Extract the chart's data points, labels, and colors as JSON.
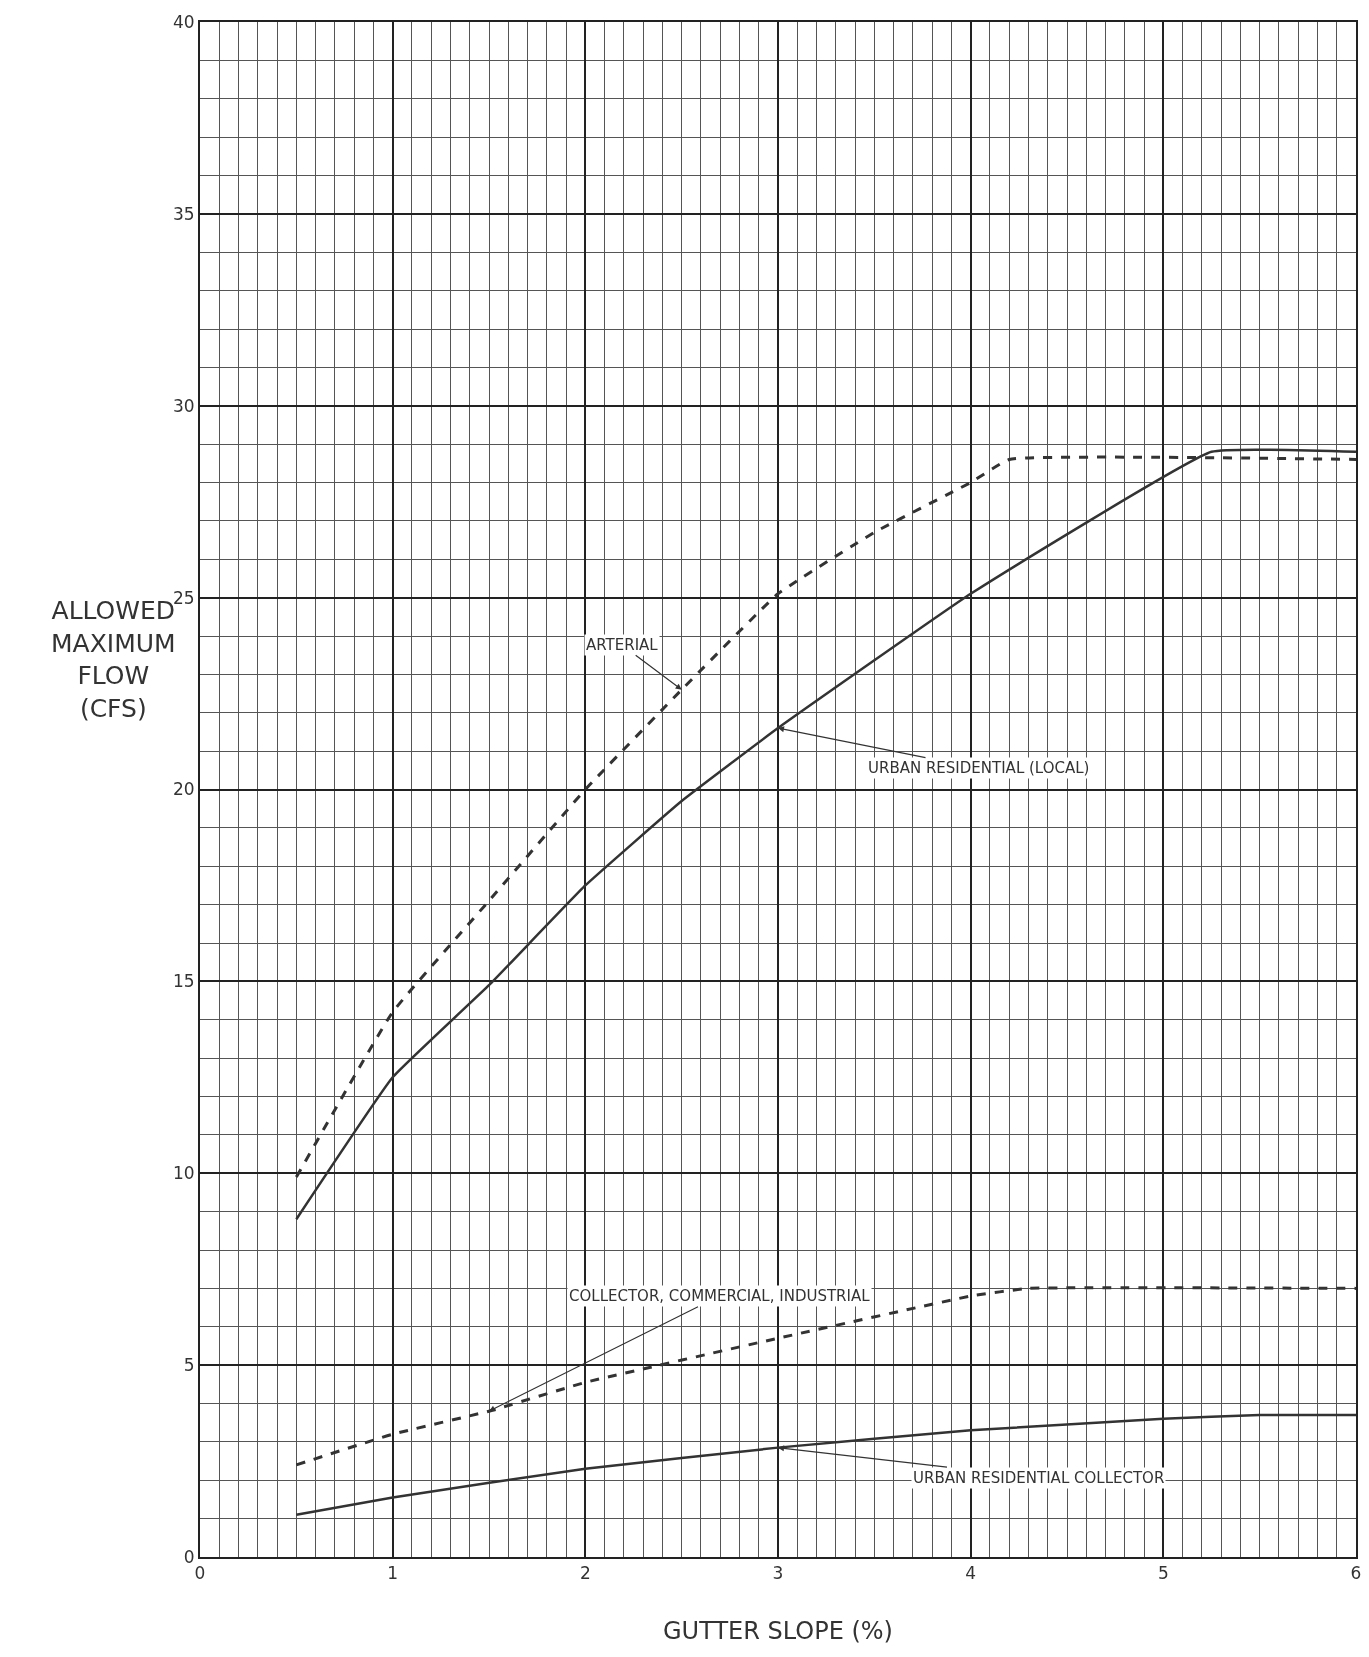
{
  "chart_data": {
    "type": "line",
    "xlabel": "GUTTER SLOPE (%)",
    "ylabel": "ALLOWED\nMAXIMUM\nFLOW\n(CFS)",
    "xlim": [
      0,
      6
    ],
    "ylim": [
      0,
      40
    ],
    "xticks": [
      0,
      1,
      2,
      3,
      4,
      5,
      6
    ],
    "yticks": [
      0,
      5,
      10,
      15,
      20,
      25,
      30,
      35,
      40
    ],
    "grid": true,
    "legend": false,
    "marker": "none",
    "series": [
      {
        "name": "ARTERIAL",
        "color": "#333333",
        "line_style": "dashed",
        "x": [
          0.5,
          1,
          1.5,
          2,
          2.5,
          3,
          3.5,
          4,
          4.2,
          6
        ],
        "values": [
          9.9,
          14.2,
          17.1,
          20.0,
          22.6,
          25.1,
          26.7,
          28.0,
          28.6,
          28.6
        ]
      },
      {
        "name": "URBAN RESIDENTIAL (LOCAL)",
        "color": "#333333",
        "line_style": "solid",
        "x": [
          0.5,
          1,
          1.5,
          2,
          2.5,
          3,
          4,
          5.25,
          6
        ],
        "values": [
          8.8,
          12.5,
          14.9,
          17.5,
          19.7,
          21.6,
          25.1,
          28.8,
          28.8
        ]
      },
      {
        "name": "COLLECTOR, COMMERCIAL, INDUSTRIAL",
        "color": "#333333",
        "line_style": "dashed",
        "x": [
          0.5,
          1,
          1.5,
          2,
          3,
          4,
          4.3,
          6
        ],
        "values": [
          2.4,
          3.2,
          3.8,
          4.55,
          5.7,
          6.8,
          7.0,
          7.0
        ]
      },
      {
        "name": "URBAN RESIDENTIAL COLLECTOR",
        "color": "#333333",
        "line_style": "solid",
        "x": [
          0.5,
          1,
          2,
          3,
          4,
          5,
          5.5,
          6
        ],
        "values": [
          1.1,
          1.55,
          2.3,
          2.85,
          3.3,
          3.6,
          3.7,
          3.7
        ]
      }
    ]
  }
}
